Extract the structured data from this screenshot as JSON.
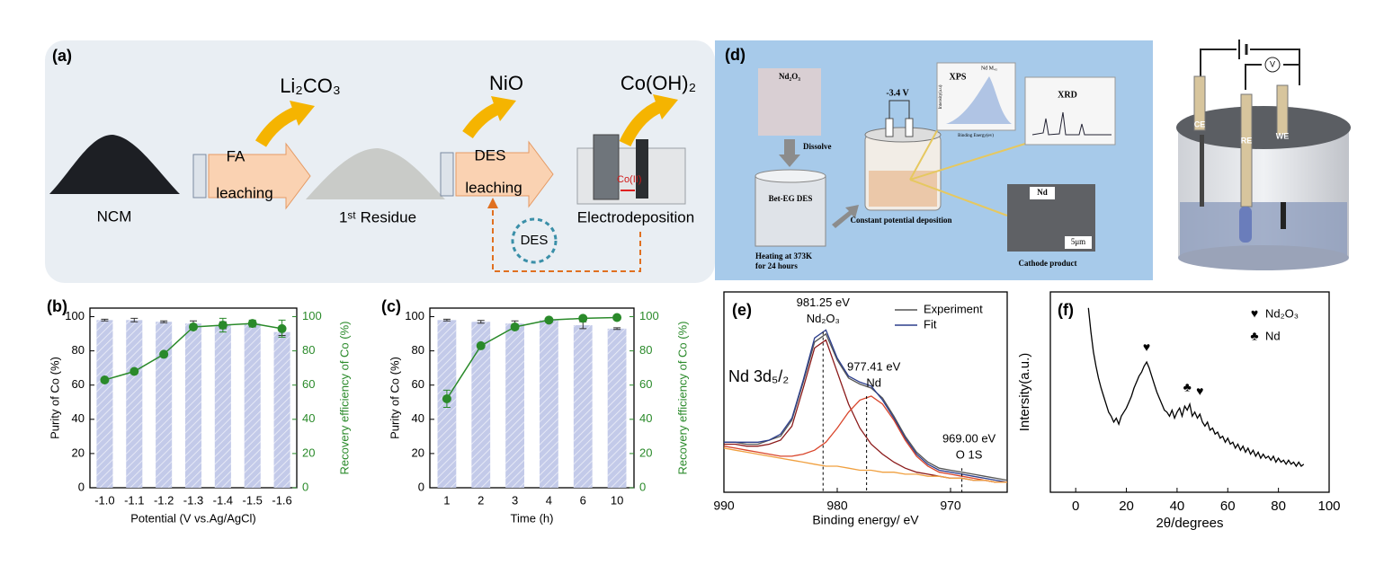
{
  "panels": {
    "a": {
      "panel_label": "(a)",
      "product_1": "Li₂CO₃",
      "step_1_reagent": "FA",
      "step_1_process": "leaching",
      "feed": "NCM",
      "residue": "1ˢᵗ Residue",
      "product_2": "NiO",
      "step_2_reagent": "DES",
      "step_2_process": "leaching",
      "product_3": "Co(OH)₂",
      "ion": "Co(II)",
      "step_3_process": "Electrodeposition",
      "recycle": "DES"
    },
    "d": {
      "panel_label": "(d)",
      "powder": "Nd₂O₃",
      "step_1": "Dissolve",
      "solvent": "Bet-EG DES",
      "heating": [
        "Heating at 373K",
        "for 24 hours"
      ],
      "voltage": "-3.4 V",
      "step_2": "Constant potential deposition",
      "xps": "XPS",
      "xps_peak": "Nd M₄₅",
      "xps_x": "Binding Energy(ev)",
      "xps_y": "Intensity(a.u)",
      "xrd": "XRD",
      "sem_label": "Nd",
      "scale_bar": "5μm",
      "product": "Cathode product"
    },
    "cell": {
      "electrodes": [
        "CE",
        "RE",
        "WE"
      ],
      "meter": "V"
    }
  },
  "chart_data": [
    {
      "type": "bar",
      "panel_label": "(b)",
      "x_label": "Potential (V vs.Ag/AgCl)",
      "y_label": "Purity of Co (%)",
      "y2_label": "Recovery efficiency of Co (%)",
      "categories": [
        "-1.0",
        "-1.1",
        "-1.2",
        "-1.3",
        "-1.4",
        "-1.5",
        "-1.6"
      ],
      "ylim": [
        0,
        105
      ],
      "yticks": [
        0,
        20,
        40,
        60,
        80,
        100
      ],
      "y2lim": [
        0,
        105
      ],
      "y2ticks": [
        0,
        20,
        40,
        60,
        80,
        100
      ],
      "series": [
        {
          "type": "bar",
          "color": "#c3cae9",
          "values": [
            98,
            98,
            97,
            96,
            95,
            96,
            91
          ],
          "errors": [
            0.5,
            1,
            0.5,
            1.5,
            2,
            1,
            2
          ]
        },
        {
          "type": "line",
          "axis": "y2",
          "color": "#2a8a2a",
          "values": [
            63,
            68,
            78,
            94,
            95,
            96,
            93
          ],
          "errors": [
            0,
            0,
            0,
            1.5,
            4,
            2,
            5
          ]
        }
      ]
    },
    {
      "type": "bar",
      "panel_label": "(c)",
      "x_label": "Time (h)",
      "y_label": "Purity of Co (%)",
      "y2_label": "Recovery efficiency of Co (%)",
      "categories": [
        "1",
        "2",
        "3",
        "4",
        "6",
        "10"
      ],
      "ylim": [
        0,
        105
      ],
      "yticks": [
        0,
        20,
        40,
        60,
        80,
        100
      ],
      "y2lim": [
        0,
        105
      ],
      "y2ticks": [
        0,
        20,
        40,
        60,
        80,
        100
      ],
      "series": [
        {
          "type": "bar",
          "color": "#c3cae9",
          "values": [
            98,
            97,
            96,
            98,
            95,
            93
          ],
          "errors": [
            0.5,
            0.8,
            1.5,
            0.5,
            2,
            0.5
          ]
        },
        {
          "type": "line",
          "axis": "y2",
          "color": "#2a8a2a",
          "values": [
            52,
            83,
            94,
            98,
            99,
            99.5
          ],
          "errors": [
            5,
            0,
            1.5,
            0,
            0,
            0
          ]
        }
      ]
    },
    {
      "type": "line",
      "panel_label": "(e)",
      "x_label": "Binding energy/ eV",
      "inset_label": "Nd 3d₅/₂",
      "x": [
        990,
        989,
        988,
        987,
        986,
        985,
        984,
        983,
        982,
        981,
        980,
        979,
        978,
        977,
        976,
        975,
        974,
        973,
        972,
        971,
        970,
        969,
        968,
        967,
        966,
        965
      ],
      "xlim": [
        990,
        965
      ],
      "xticks": [
        990,
        980,
        970
      ],
      "ylim": [
        0,
        100
      ],
      "series": [
        {
          "name": "Experiment",
          "color": "#555555",
          "values": [
            25,
            25,
            24,
            24,
            26,
            28,
            36,
            55,
            75,
            79,
            66,
            57,
            54,
            52,
            47,
            38,
            28,
            20,
            15,
            12,
            11,
            10,
            9,
            8,
            7,
            6
          ]
        },
        {
          "name": "Fit",
          "color": "#2c3e8c",
          "values": [
            25,
            25,
            25,
            25,
            26,
            29,
            37,
            56,
            77,
            81,
            67,
            58,
            55,
            53,
            46,
            37,
            27,
            19,
            14,
            11,
            10,
            9,
            8,
            7,
            6,
            5
          ]
        },
        {
          "color": "#8b1a1a",
          "values": [
            24,
            24,
            23,
            23,
            24,
            26,
            33,
            52,
            72,
            76,
            60,
            44,
            32,
            24,
            19,
            15,
            12,
            10,
            9,
            8,
            7,
            7,
            6,
            6,
            5,
            5
          ]
        },
        {
          "color": "#d9452b",
          "values": [
            23,
            22,
            21,
            20,
            19,
            18,
            18,
            19,
            21,
            25,
            32,
            40,
            46,
            48,
            44,
            36,
            26,
            18,
            13,
            10,
            9,
            8,
            7,
            6,
            5,
            5
          ]
        },
        {
          "color": "#f0a040",
          "values": [
            22,
            21,
            20,
            19,
            18,
            17,
            16,
            15,
            14,
            13,
            13,
            12,
            11,
            11,
            10,
            10,
            9,
            9,
            8,
            8,
            7,
            7,
            6,
            6,
            5,
            5
          ]
        }
      ],
      "annotations": [
        {
          "x": 981.25,
          "y": 80,
          "label": "981.25 eV",
          "species": "Nd₂O₃"
        },
        {
          "x": 977.41,
          "y": 48,
          "label": "977.41 eV",
          "species": "Nd"
        },
        {
          "x": 969.0,
          "y": 12,
          "label": "969.00 eV",
          "species": "O 1S"
        }
      ]
    },
    {
      "type": "line",
      "panel_label": "(f)",
      "x_label": "2θ/degrees",
      "y_label": "Intersity(a.u.)",
      "x": [
        5,
        6,
        7,
        8,
        9,
        10,
        11,
        12,
        13,
        14,
        15,
        16,
        17,
        18,
        19,
        20,
        21,
        22,
        23,
        24,
        25,
        26,
        27,
        28,
        29,
        30,
        31,
        32,
        33,
        34,
        35,
        36,
        37,
        38,
        39,
        40,
        41,
        42,
        43,
        44,
        45,
        46,
        47,
        48,
        49,
        50,
        51,
        52,
        53,
        54,
        55,
        56,
        57,
        58,
        59,
        60,
        61,
        62,
        63,
        64,
        65,
        66,
        67,
        68,
        69,
        70,
        71,
        72,
        73,
        74,
        75,
        76,
        77,
        78,
        79,
        80,
        81,
        82,
        83,
        84,
        85,
        86,
        87,
        88,
        89,
        90
      ],
      "xlim": [
        -10,
        100
      ],
      "xticks": [
        0,
        20,
        40,
        60,
        80,
        100
      ],
      "ylim": [
        0,
        100
      ],
      "series": [
        {
          "color": "#000000",
          "values": [
            92,
            80,
            70,
            63,
            57,
            52,
            48,
            44,
            40,
            38,
            35,
            37,
            34,
            38,
            40,
            42,
            45,
            48,
            52,
            55,
            58,
            60,
            63,
            65,
            62,
            58,
            54,
            50,
            47,
            44,
            41,
            40,
            38,
            41,
            37,
            40,
            42,
            38,
            43,
            41,
            44,
            38,
            40,
            37,
            39,
            35,
            33,
            35,
            31,
            32,
            29,
            30,
            27,
            28,
            25,
            27,
            24,
            25,
            22,
            24,
            21,
            23,
            20,
            22,
            19,
            21,
            18,
            20,
            17,
            19,
            17,
            18,
            16,
            18,
            15,
            17,
            15,
            16,
            14,
            16,
            14,
            15,
            13,
            15,
            13,
            14
          ]
        }
      ],
      "peak_markers": [
        {
          "x": 28,
          "y": 72,
          "symbol": "♥"
        },
        {
          "x": 44,
          "y": 52,
          "symbol": "♣"
        },
        {
          "x": 49,
          "y": 50,
          "symbol": "♥"
        }
      ],
      "legend": [
        {
          "symbol": "♥",
          "label": "Nd₂O₃"
        },
        {
          "symbol": "♣",
          "label": "Nd"
        }
      ]
    }
  ]
}
